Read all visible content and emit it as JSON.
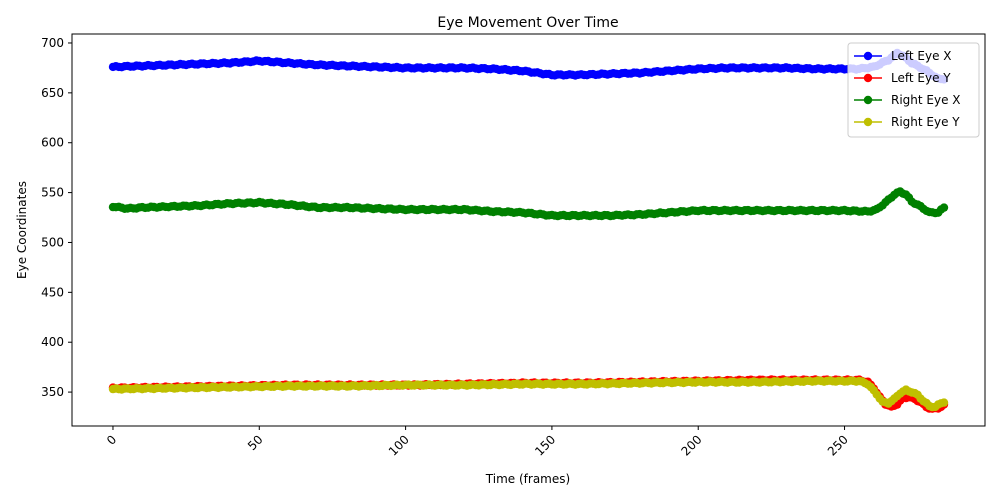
{
  "chart_data": {
    "type": "line",
    "title": "Eye Movement Over Time",
    "xlabel": "Time (frames)",
    "ylabel": "Eye Coordinates",
    "xlim": [
      -14,
      298
    ],
    "ylim": [
      316,
      709
    ],
    "xticks": [
      0,
      50,
      100,
      150,
      200,
      250
    ],
    "yticks": [
      350,
      400,
      450,
      500,
      550,
      600,
      650,
      700
    ],
    "grid": false,
    "legend_position": "top-right",
    "series": [
      {
        "name": "Left Eye X",
        "color": "#0000ff",
        "keypoints": [
          [
            0,
            676
          ],
          [
            10,
            677
          ],
          [
            20,
            678
          ],
          [
            30,
            679
          ],
          [
            40,
            680
          ],
          [
            50,
            682
          ],
          [
            55,
            681
          ],
          [
            60,
            680
          ],
          [
            70,
            678
          ],
          [
            80,
            677
          ],
          [
            90,
            676
          ],
          [
            100,
            675
          ],
          [
            110,
            675
          ],
          [
            120,
            675
          ],
          [
            130,
            674
          ],
          [
            140,
            672
          ],
          [
            150,
            668
          ],
          [
            160,
            668
          ],
          [
            170,
            669
          ],
          [
            180,
            670
          ],
          [
            190,
            672
          ],
          [
            200,
            674
          ],
          [
            210,
            675
          ],
          [
            220,
            675
          ],
          [
            230,
            675
          ],
          [
            240,
            674
          ],
          [
            250,
            674
          ],
          [
            255,
            674
          ],
          [
            260,
            676
          ],
          [
            265,
            683
          ],
          [
            268,
            690
          ],
          [
            270,
            687
          ],
          [
            273,
            680
          ],
          [
            278,
            672
          ],
          [
            282,
            664
          ],
          [
            284,
            664
          ]
        ]
      },
      {
        "name": "Left Eye Y",
        "color": "#ff0000",
        "keypoints": [
          [
            0,
            354
          ],
          [
            20,
            355
          ],
          [
            40,
            356
          ],
          [
            60,
            357
          ],
          [
            80,
            357
          ],
          [
            100,
            357
          ],
          [
            120,
            358
          ],
          [
            140,
            359
          ],
          [
            160,
            359
          ],
          [
            180,
            360
          ],
          [
            200,
            361
          ],
          [
            220,
            362
          ],
          [
            240,
            362
          ],
          [
            255,
            362
          ],
          [
            258,
            360
          ],
          [
            260,
            354
          ],
          [
            262,
            345
          ],
          [
            264,
            338
          ],
          [
            266,
            335
          ],
          [
            268,
            338
          ],
          [
            270,
            344
          ],
          [
            272,
            345
          ],
          [
            274,
            343
          ],
          [
            276,
            340
          ],
          [
            278,
            335
          ],
          [
            280,
            333
          ],
          [
            282,
            334
          ],
          [
            284,
            337
          ]
        ]
      },
      {
        "name": "Right Eye X",
        "color": "#008000",
        "keypoints": [
          [
            0,
            536
          ],
          [
            5,
            534
          ],
          [
            10,
            535
          ],
          [
            20,
            536
          ],
          [
            30,
            537
          ],
          [
            40,
            539
          ],
          [
            50,
            540
          ],
          [
            55,
            539
          ],
          [
            60,
            538
          ],
          [
            70,
            535
          ],
          [
            80,
            535
          ],
          [
            90,
            534
          ],
          [
            100,
            533
          ],
          [
            110,
            533
          ],
          [
            120,
            533
          ],
          [
            130,
            531
          ],
          [
            140,
            530
          ],
          [
            150,
            527
          ],
          [
            160,
            527
          ],
          [
            170,
            527
          ],
          [
            180,
            528
          ],
          [
            190,
            530
          ],
          [
            200,
            532
          ],
          [
            210,
            532
          ],
          [
            220,
            532
          ],
          [
            230,
            532
          ],
          [
            240,
            532
          ],
          [
            250,
            532
          ],
          [
            258,
            531
          ],
          [
            261,
            533
          ],
          [
            264,
            540
          ],
          [
            267,
            548
          ],
          [
            269,
            551
          ],
          [
            271,
            548
          ],
          [
            273,
            541
          ],
          [
            276,
            536
          ],
          [
            279,
            530
          ],
          [
            282,
            530
          ],
          [
            284,
            535
          ]
        ]
      },
      {
        "name": "Right Eye Y",
        "color": "#bfbf00",
        "keypoints": [
          [
            0,
            353
          ],
          [
            20,
            354
          ],
          [
            40,
            355
          ],
          [
            60,
            356
          ],
          [
            80,
            356
          ],
          [
            100,
            357
          ],
          [
            120,
            357
          ],
          [
            140,
            358
          ],
          [
            160,
            358
          ],
          [
            180,
            359
          ],
          [
            200,
            360
          ],
          [
            220,
            360
          ],
          [
            240,
            361
          ],
          [
            255,
            361
          ],
          [
            258,
            358
          ],
          [
            261,
            348
          ],
          [
            263,
            340
          ],
          [
            265,
            339
          ],
          [
            267,
            343
          ],
          [
            269,
            349
          ],
          [
            271,
            352
          ],
          [
            273,
            350
          ],
          [
            275,
            347
          ],
          [
            277,
            341
          ],
          [
            279,
            336
          ],
          [
            281,
            335
          ],
          [
            283,
            339
          ],
          [
            284,
            340
          ]
        ]
      }
    ]
  }
}
